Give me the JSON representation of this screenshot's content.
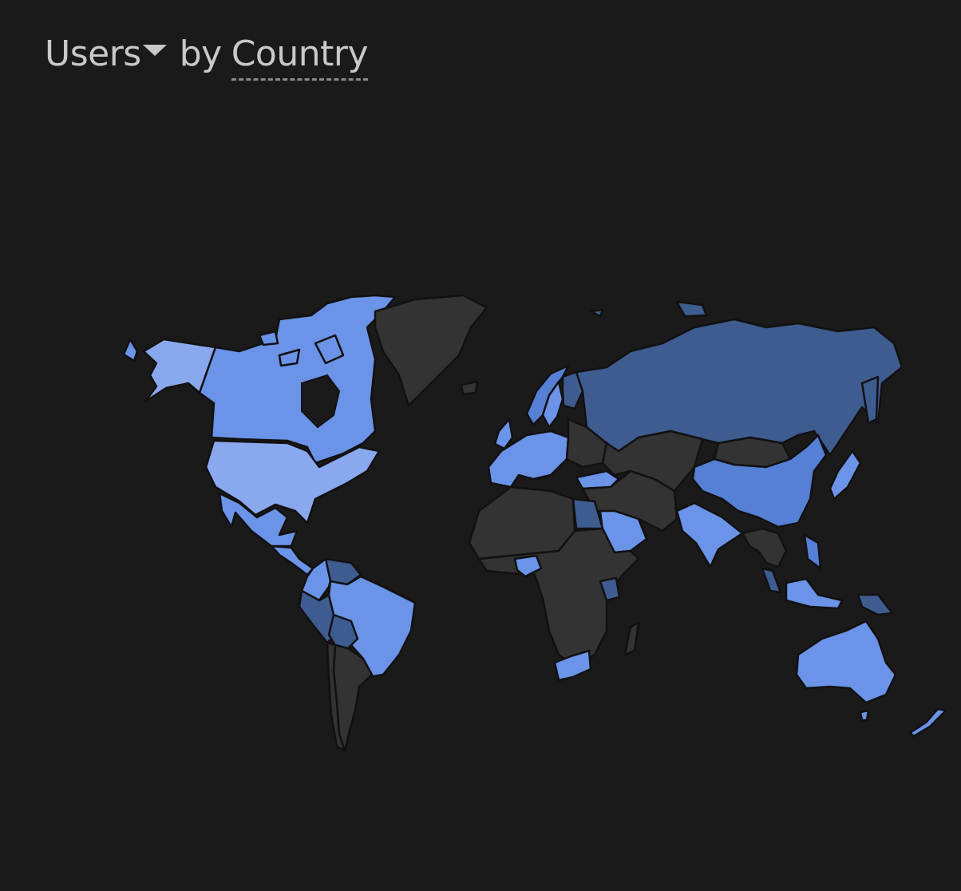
{
  "header": {
    "metric_label": "Users",
    "by_label": "by",
    "dimension_label": "Country"
  },
  "map": {
    "colors": {
      "background": "#1a1a1b",
      "no_data": "#333333",
      "light": "#8aa8ee",
      "mid_light": "#6b93e8",
      "mid": "#5680d6",
      "dark": "#3f5c91",
      "border": "#111111"
    },
    "regions": [
      {
        "name": "Alaska (USA)",
        "level": "light"
      },
      {
        "name": "Canada",
        "level": "mid_light"
      },
      {
        "name": "Greenland",
        "level": "no_data"
      },
      {
        "name": "United States",
        "level": "light"
      },
      {
        "name": "Mexico",
        "level": "mid_light"
      },
      {
        "name": "Central America",
        "level": "mid_light"
      },
      {
        "name": "Colombia",
        "level": "mid_light"
      },
      {
        "name": "Venezuela",
        "level": "dark"
      },
      {
        "name": "Peru",
        "level": "dark"
      },
      {
        "name": "Brazil",
        "level": "mid_light"
      },
      {
        "name": "Bolivia",
        "level": "dark"
      },
      {
        "name": "Argentina",
        "level": "no_data"
      },
      {
        "name": "Chile",
        "level": "no_data"
      },
      {
        "name": "Iceland",
        "level": "no_data"
      },
      {
        "name": "Norway",
        "level": "mid"
      },
      {
        "name": "Sweden",
        "level": "mid_light"
      },
      {
        "name": "Finland",
        "level": "dark"
      },
      {
        "name": "United Kingdom",
        "level": "mid_light"
      },
      {
        "name": "Western Europe",
        "level": "mid_light"
      },
      {
        "name": "Eastern Europe",
        "level": "no_data"
      },
      {
        "name": "Turkey",
        "level": "mid_light"
      },
      {
        "name": "Russia",
        "level": "dark"
      },
      {
        "name": "Kazakhstan & Central Asia",
        "level": "no_data"
      },
      {
        "name": "Mongolia",
        "level": "no_data"
      },
      {
        "name": "China",
        "level": "mid"
      },
      {
        "name": "Japan",
        "level": "mid_light"
      },
      {
        "name": "India",
        "level": "mid_light"
      },
      {
        "name": "Saudi Arabia",
        "level": "mid_light"
      },
      {
        "name": "Middle East",
        "level": "no_data"
      },
      {
        "name": "Egypt",
        "level": "dark"
      },
      {
        "name": "North Africa",
        "level": "no_data"
      },
      {
        "name": "Nigeria",
        "level": "mid_light"
      },
      {
        "name": "Sub-Saharan Africa",
        "level": "no_data"
      },
      {
        "name": "Kenya",
        "level": "dark"
      },
      {
        "name": "South Africa",
        "level": "mid_light"
      },
      {
        "name": "Madagascar",
        "level": "no_data"
      },
      {
        "name": "Southeast Asia",
        "level": "no_data"
      },
      {
        "name": "Malaysia",
        "level": "dark"
      },
      {
        "name": "Philippines",
        "level": "mid"
      },
      {
        "name": "Indonesia",
        "level": "mid_light"
      },
      {
        "name": "Papua New Guinea",
        "level": "dark"
      },
      {
        "name": "Australia",
        "level": "mid_light"
      },
      {
        "name": "New Zealand",
        "level": "mid_light"
      }
    ]
  }
}
